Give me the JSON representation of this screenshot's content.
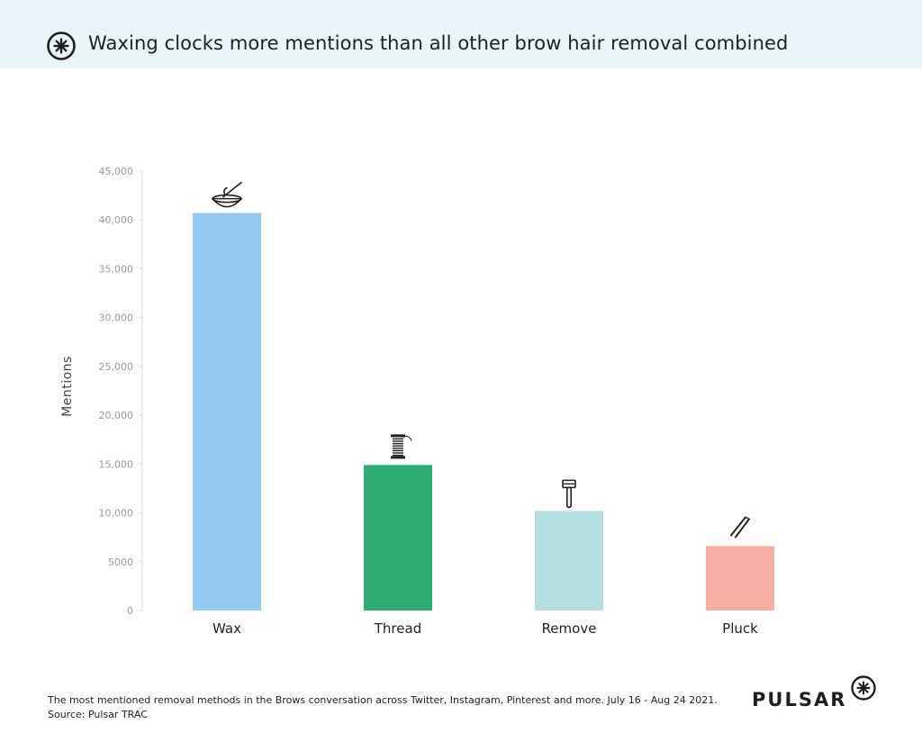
{
  "header": {
    "title": "Waxing clocks more mentions than all other brow hair removal combined",
    "logo_icon": "pulsar-asterisk-icon"
  },
  "chart_data": {
    "type": "bar",
    "title": "Waxing clocks more mentions than all other brow hair removal combined",
    "categories": [
      "Wax",
      "Thread",
      "Remove",
      "Pluck"
    ],
    "values": [
      40700,
      14900,
      10200,
      6600
    ],
    "colors": [
      "#94c9ef",
      "#2dad71",
      "#b4dfe2",
      "#f5aea1"
    ],
    "icons": [
      "wax-bowl-icon",
      "thread-spool-icon",
      "razor-icon",
      "tweezers-icon"
    ],
    "xlabel": "",
    "ylabel": "Mentions",
    "ylim": [
      0,
      45000
    ],
    "yticks": [
      0,
      5000,
      10000,
      15000,
      20000,
      25000,
      30000,
      35000,
      40000,
      45000
    ],
    "ytick_labels": [
      "0",
      "5000",
      "10,000",
      "15,000",
      "20,000",
      "25,000",
      "30,000",
      "35,000",
      "40,000",
      "45,000"
    ],
    "grid": false,
    "legend": "none"
  },
  "footer": {
    "note": "The most mentioned removal methods in the Brows conversation across Twitter, Instagram, Pinterest and more. July 16 - Aug 24 2021.",
    "source": "Source: Pulsar TRAC"
  },
  "brand": {
    "name": "PULSAR",
    "logo_icon": "pulsar-asterisk-icon"
  }
}
